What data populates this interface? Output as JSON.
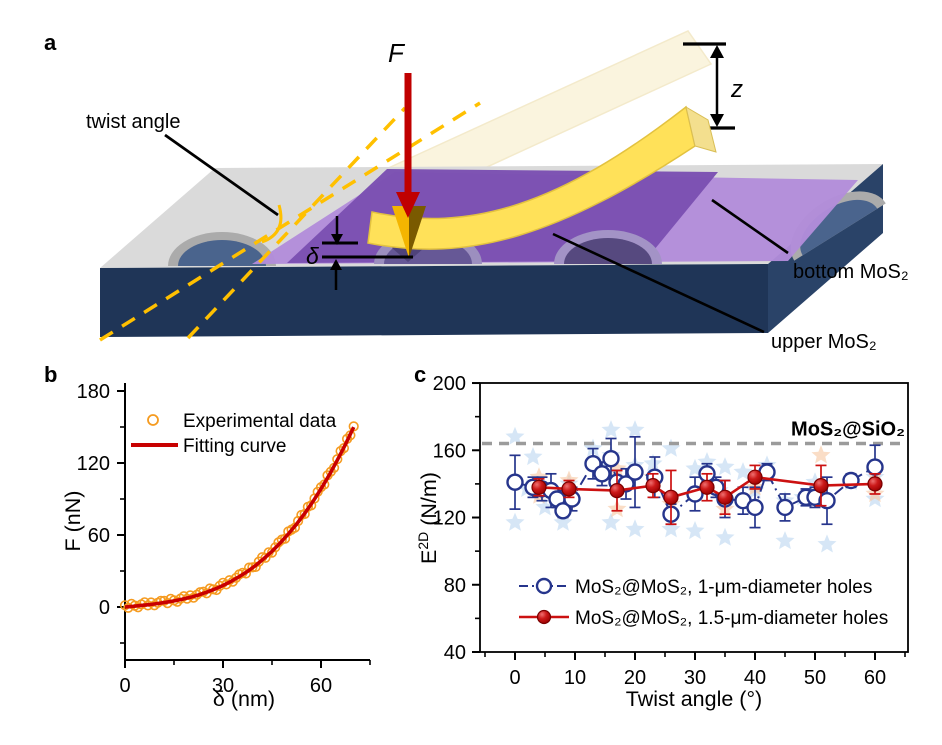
{
  "figure": {
    "panel_labels": {
      "a": "a",
      "b": "b",
      "c": "c"
    }
  },
  "panel_a": {
    "labels": {
      "twist_angle": "twist angle",
      "force": "F",
      "z": "z",
      "delta": "δ",
      "bottom_mos2": "bottom MoS₂",
      "upper_mos2": "upper MoS₂"
    },
    "colors": {
      "substrate_front": "#1F3557",
      "substrate_side": "#2A4368",
      "substrate_top": "#DADADA",
      "hole_rim": "#ABABAB",
      "hole_dome": "#4A648D",
      "upper_sheet": "#7B50B2",
      "bottom_sheet": "#B28DDA",
      "cantilever": "#FFE159",
      "tip_gold": "#F4B500",
      "force_arrow": "#C00000",
      "twist_dash": "#FFC000"
    }
  },
  "chart_data": [
    {
      "id": "panel_b",
      "type": "scatter",
      "title": "",
      "xlabel": "δ (nm)",
      "ylabel": "F (nN)",
      "xlim": [
        0,
        75
      ],
      "ylim": [
        -45,
        187
      ],
      "xticks": [
        0,
        30,
        60
      ],
      "xticks_minor": [
        15,
        45,
        75
      ],
      "yticks": [
        0,
        60,
        120,
        180
      ],
      "yticks_minor": [
        -30,
        30,
        90,
        150
      ],
      "grid": false,
      "legend_position": "top-left-inside",
      "legend": [
        "Experimental data",
        "Fitting curve"
      ],
      "series": [
        {
          "name": "Experimental data",
          "marker": "open-circle",
          "color": "#F59B20",
          "sample_step_nm": 1,
          "jitter_nN": [
            1.4,
            -0.9,
            2.1,
            0.4,
            -1.3,
            0.9,
            2.3,
            -0.5,
            1.6,
            -1.1,
            0.6,
            1.9
          ]
        },
        {
          "name": "Fitting curve",
          "type": "line",
          "color": "#C80000",
          "x": [
            0,
            2.5,
            5,
            7.5,
            10,
            12.5,
            15,
            17.5,
            20,
            22.5,
            25,
            27.5,
            30,
            32.5,
            35,
            37.5,
            40,
            42.5,
            45,
            47.5,
            50,
            52.5,
            55,
            57.5,
            60,
            62.5,
            65,
            67.5,
            70
          ],
          "y": [
            0,
            0.6,
            1.3,
            2,
            2.9,
            3.9,
            5.1,
            6.4,
            8.1,
            10,
            12.3,
            14.9,
            17.9,
            21.4,
            25.3,
            29.7,
            34.7,
            40.3,
            46.4,
            53.3,
            60.8,
            69,
            78,
            87.7,
            98.4,
            109.9,
            122.3,
            135.6,
            149.9
          ]
        }
      ]
    },
    {
      "id": "panel_c",
      "type": "scatter",
      "title": "",
      "xlabel": "Twist angle (°)",
      "ylabel_parts": [
        "E",
        "2D",
        " (N/m)"
      ],
      "xlim": [
        -6,
        66
      ],
      "ylim": [
        40,
        200
      ],
      "xticks": [
        0,
        10,
        20,
        30,
        40,
        50,
        60
      ],
      "xticks_minor": [
        -5,
        5,
        15,
        25,
        35,
        45,
        55,
        65
      ],
      "yticks": [
        40,
        80,
        120,
        160,
        200
      ],
      "yticks_minor": [
        60,
        100,
        140,
        180
      ],
      "grid": false,
      "annotation": {
        "text": "MoS₂@SiO₂",
        "value": 164,
        "color": "#9B9B9B",
        "style": "dashed-line"
      },
      "series": [
        {
          "name": "MoS₂@MoS₂, 1-μm-diameter holes",
          "marker": "open-circle",
          "line": "dash-dot",
          "color": "#26358C",
          "x": [
            0,
            3,
            4.5,
            6,
            7,
            8,
            9.5,
            13,
            14.5,
            16,
            17,
            18.5,
            20,
            23.3,
            26,
            30,
            32,
            33.5,
            35,
            38,
            40,
            42,
            45,
            48.5,
            50,
            52,
            56,
            60
          ],
          "y": [
            141,
            138,
            137,
            136,
            131,
            124,
            131,
            152,
            146,
            155,
            141,
            140,
            147,
            144,
            122,
            134,
            146,
            138,
            131,
            130,
            126,
            147,
            126,
            132,
            132,
            130,
            142,
            150
          ],
          "yerr": [
            16,
            6,
            7,
            10,
            5,
            4,
            7,
            9,
            7,
            12,
            7,
            9,
            21,
            12,
            6,
            10,
            6,
            6,
            11,
            8,
            12,
            5,
            8,
            5,
            6,
            14,
            4,
            13
          ]
        },
        {
          "name": "MoS₂@MoS₂, 1.5-μm-diameter holes",
          "marker": "filled-circle",
          "line": "solid",
          "color": "#CC1111",
          "x": [
            4,
            9,
            17,
            23,
            26,
            32,
            35,
            40,
            51,
            60
          ],
          "y": [
            138,
            137,
            136,
            139,
            132,
            138,
            132,
            144,
            139,
            140
          ],
          "yerr": [
            5,
            5,
            12,
            7,
            16,
            8,
            10,
            7,
            12,
            6
          ]
        }
      ],
      "background_scatter": {
        "blue_stars": {
          "color": "#BBD5F0",
          "x": [
            0,
            0,
            2,
            3,
            5,
            8,
            9,
            13,
            14,
            16,
            16,
            16,
            20,
            20,
            20,
            23,
            26,
            26,
            30,
            30,
            32,
            34,
            35,
            35,
            38,
            40,
            42,
            45,
            45,
            48,
            50,
            52,
            56,
            60,
            60
          ],
          "y": [
            168,
            117,
            137,
            156,
            126,
            117,
            140,
            161,
            151,
            172,
            157,
            117,
            172,
            151,
            113,
            152,
            161,
            113,
            149,
            112,
            153,
            136,
            150,
            108,
            147,
            136,
            151,
            130,
            106,
            132,
            141,
            104,
            141,
            144,
            131
          ]
        },
        "orange_stars": {
          "color": "#F6C6A0",
          "x": [
            4,
            4,
            9,
            9,
            17,
            17,
            23,
            26,
            32,
            35,
            40,
            51,
            60,
            60
          ],
          "y": [
            144,
            133,
            142,
            130,
            149,
            125,
            144,
            128,
            144,
            125,
            138,
            157,
            147,
            134
          ]
        }
      }
    }
  ]
}
